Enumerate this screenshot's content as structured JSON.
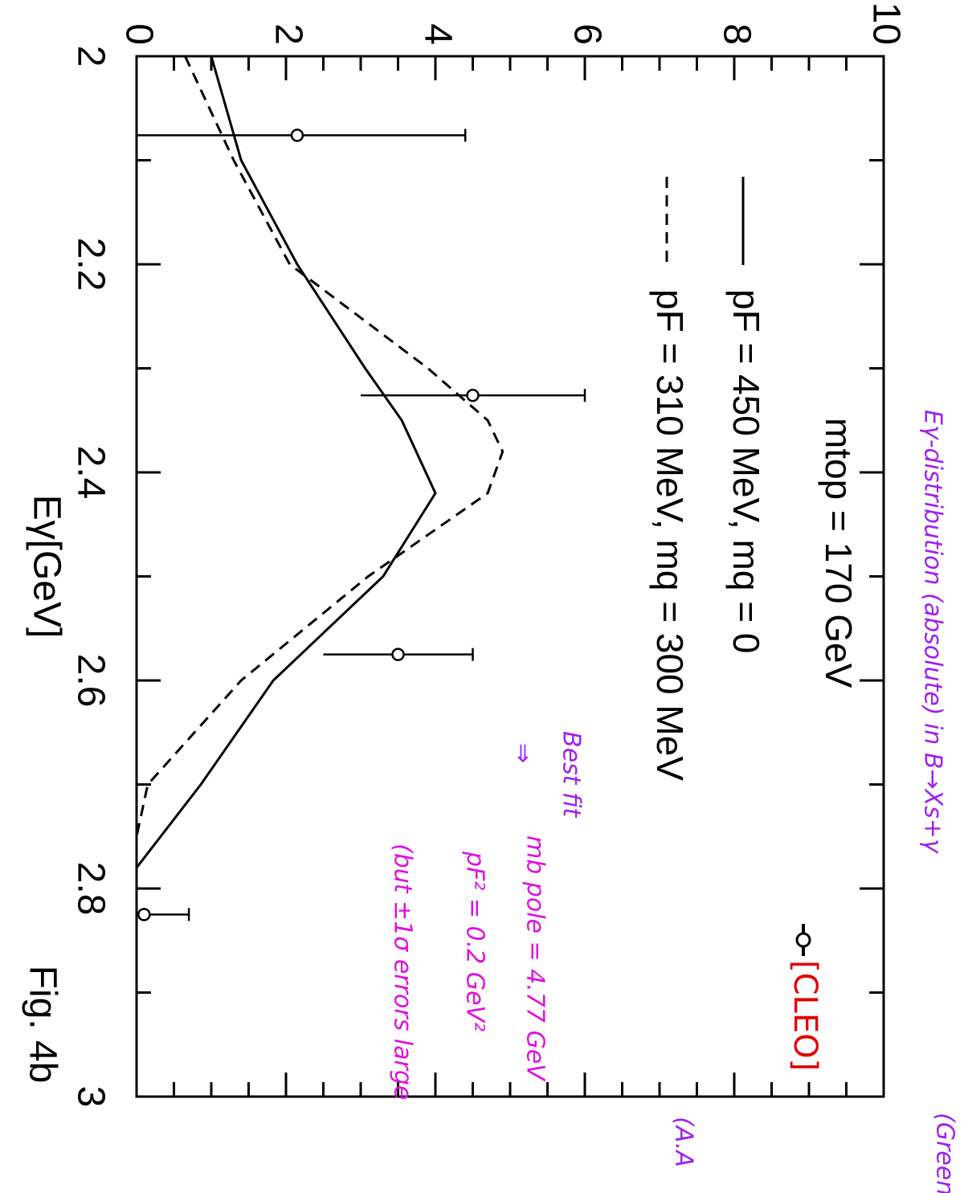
{
  "chart_data": {
    "type": "line",
    "x_label": "Eγ[GeV]",
    "figure_label": "Fig. 4b",
    "xlim": [
      2,
      3
    ],
    "ylim": [
      0,
      10
    ],
    "xticks": [
      2,
      2.2,
      2.4,
      2.6,
      2.8,
      3
    ],
    "xminor_ticks": [
      2.1,
      2.3,
      2.5,
      2.7,
      2.9
    ],
    "yticks": [
      0,
      2,
      4,
      6,
      8,
      10
    ],
    "yminor_ticks": [
      0.5,
      1,
      1.5,
      2.5,
      3,
      3.5,
      4.5,
      5,
      5.5,
      6.5,
      7,
      7.5,
      8.5,
      9,
      9.5
    ],
    "legend_header": "mtop = 170 GeV",
    "series": [
      {
        "name": "pF = 450 MeV, mq = 0",
        "color": "#000000",
        "style": "solid",
        "x": [
          2.0,
          2.1,
          2.2,
          2.3,
          2.35,
          2.42,
          2.5,
          2.6,
          2.7,
          2.78
        ],
        "values": [
          1.0,
          1.4,
          2.15,
          3.06,
          3.55,
          4.0,
          3.3,
          1.83,
          0.86,
          0
        ]
      },
      {
        "name": "pF = 310 MeV, mq = 300 MeV",
        "color": "#000000",
        "style": "dashed",
        "x": [
          2.0,
          2.1,
          2.2,
          2.3,
          2.35,
          2.38,
          2.42,
          2.5,
          2.6,
          2.7,
          2.75
        ],
        "values": [
          0.65,
          1.3,
          2.05,
          3.9,
          4.7,
          4.9,
          4.7,
          3.1,
          1.4,
          0.15,
          0
        ]
      }
    ],
    "data_points": {
      "name": "[CLEO]",
      "color": "#000000",
      "x": [
        2.076,
        2.326,
        2.575,
        2.825
      ],
      "values": [
        2.15,
        4.5,
        3.5,
        0.1
      ],
      "errors": [
        2.25,
        1.5,
        1.0,
        0.6
      ]
    },
    "annotations": [
      {
        "text": "Eγ-distribution (absolute) in B→Xs+γ",
        "color": "#a020f0"
      },
      {
        "text": "(Green",
        "color": "#a020f0"
      },
      {
        "text": "(A.A",
        "color": "#a020f0"
      },
      {
        "text": "Best fit",
        "color": "#a020f0"
      },
      {
        "text": "⇒",
        "color": "#a020f0"
      },
      {
        "text": "mb pole = 4.77 GeV",
        "color": "#e010e0"
      },
      {
        "text": "pF² = 0.2 GeV²",
        "color": "#e010e0"
      },
      {
        "text": "(but ±1σ errors large",
        "color": "#e010e0"
      }
    ]
  }
}
